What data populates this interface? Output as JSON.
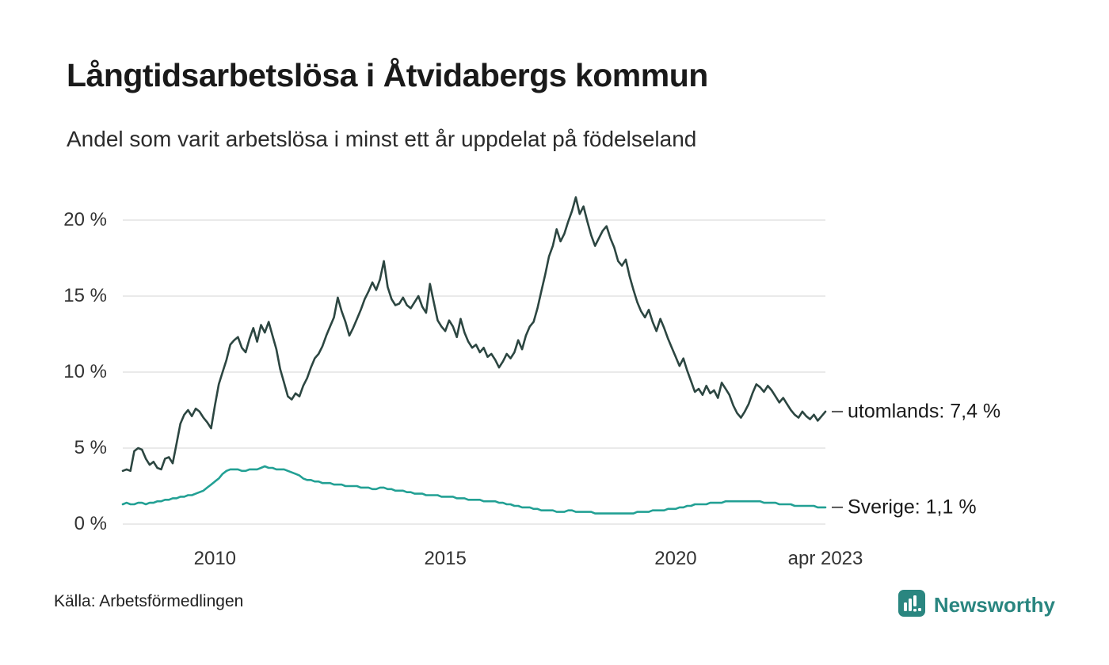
{
  "header": {
    "title": "Långtidsarbetslösa i Åtvidabergs kommun",
    "subtitle": "Andel som varit arbetslösa i minst ett år uppdelat på födelseland"
  },
  "chart_data": {
    "type": "line",
    "title": "Långtidsarbetslösa i Åtvidabergs kommun",
    "subtitle": "Andel som varit arbetslösa i minst ett år uppdelat på födelseland",
    "x_start": "2008-01",
    "x_end": "2023-04",
    "x_frequency": "monthly",
    "ylim": [
      0,
      22
    ],
    "grid": "horizontal",
    "gridline_color": "#e4e4e4",
    "y_ticks": [
      0,
      5,
      10,
      15,
      20
    ],
    "y_tick_labels": [
      "0 %",
      "5 %",
      "10 %",
      "15 %",
      "20 %"
    ],
    "x_ticks": [
      {
        "label": "2010",
        "month_index": 24
      },
      {
        "label": "2015",
        "month_index": 84
      },
      {
        "label": "2020",
        "month_index": 144
      },
      {
        "label": "apr 2023",
        "month_index": 183
      }
    ],
    "series": [
      {
        "name": "utomlands",
        "color": "#2c4641",
        "end_label": "utomlands: 7,4 %",
        "last_value": 7.4,
        "values": [
          3.5,
          3.6,
          3.5,
          4.8,
          5.0,
          4.9,
          4.3,
          3.9,
          4.1,
          3.7,
          3.6,
          4.3,
          4.4,
          4.0,
          5.3,
          6.6,
          7.2,
          7.5,
          7.1,
          7.6,
          7.4,
          7.0,
          6.7,
          6.3,
          7.8,
          9.2,
          10.0,
          10.8,
          11.8,
          12.1,
          12.3,
          11.6,
          11.3,
          12.2,
          12.9,
          12.0,
          13.1,
          12.6,
          13.3,
          12.4,
          11.5,
          10.2,
          9.3,
          8.4,
          8.2,
          8.6,
          8.4,
          9.1,
          9.6,
          10.3,
          10.9,
          11.2,
          11.7,
          12.4,
          13.0,
          13.6,
          14.9,
          14.0,
          13.3,
          12.4,
          12.9,
          13.5,
          14.1,
          14.8,
          15.3,
          15.9,
          15.4,
          16.1,
          17.3,
          15.6,
          14.8,
          14.4,
          14.5,
          14.9,
          14.4,
          14.2,
          14.6,
          15.0,
          14.3,
          13.9,
          15.8,
          14.6,
          13.4,
          13.0,
          12.7,
          13.4,
          13.0,
          12.3,
          13.5,
          12.6,
          12.0,
          11.6,
          11.8,
          11.3,
          11.6,
          11.0,
          11.2,
          10.8,
          10.3,
          10.7,
          11.2,
          10.9,
          11.3,
          12.1,
          11.5,
          12.4,
          13.0,
          13.3,
          14.2,
          15.3,
          16.4,
          17.6,
          18.3,
          19.4,
          18.6,
          19.1,
          19.9,
          20.6,
          21.5,
          20.4,
          20.9,
          19.9,
          19.0,
          18.3,
          18.8,
          19.3,
          19.6,
          18.8,
          18.2,
          17.3,
          17.0,
          17.4,
          16.3,
          15.4,
          14.6,
          14.0,
          13.6,
          14.1,
          13.3,
          12.7,
          13.5,
          12.9,
          12.2,
          11.6,
          11.0,
          10.4,
          10.9,
          10.1,
          9.4,
          8.7,
          8.9,
          8.5,
          9.1,
          8.6,
          8.8,
          8.3,
          9.3,
          8.9,
          8.5,
          7.8,
          7.3,
          7.0,
          7.4,
          7.9,
          8.6,
          9.2,
          9.0,
          8.7,
          9.1,
          8.8,
          8.4,
          8.0,
          8.3,
          7.9,
          7.5,
          7.2,
          7.0,
          7.4,
          7.1,
          6.9,
          7.2,
          6.8,
          7.1,
          7.4
        ]
      },
      {
        "name": "Sverige",
        "color": "#22a094",
        "end_label": "Sverige: 1,1 %",
        "last_value": 1.1,
        "values": [
          1.3,
          1.4,
          1.3,
          1.3,
          1.4,
          1.4,
          1.3,
          1.4,
          1.4,
          1.5,
          1.5,
          1.6,
          1.6,
          1.7,
          1.7,
          1.8,
          1.8,
          1.9,
          1.9,
          2.0,
          2.1,
          2.2,
          2.4,
          2.6,
          2.8,
          3.0,
          3.3,
          3.5,
          3.6,
          3.6,
          3.6,
          3.5,
          3.5,
          3.6,
          3.6,
          3.6,
          3.7,
          3.8,
          3.7,
          3.7,
          3.6,
          3.6,
          3.6,
          3.5,
          3.4,
          3.3,
          3.2,
          3.0,
          2.9,
          2.9,
          2.8,
          2.8,
          2.7,
          2.7,
          2.7,
          2.6,
          2.6,
          2.6,
          2.5,
          2.5,
          2.5,
          2.5,
          2.4,
          2.4,
          2.4,
          2.3,
          2.3,
          2.4,
          2.4,
          2.3,
          2.3,
          2.2,
          2.2,
          2.2,
          2.1,
          2.1,
          2.0,
          2.0,
          2.0,
          1.9,
          1.9,
          1.9,
          1.9,
          1.8,
          1.8,
          1.8,
          1.8,
          1.7,
          1.7,
          1.7,
          1.6,
          1.6,
          1.6,
          1.6,
          1.5,
          1.5,
          1.5,
          1.5,
          1.4,
          1.4,
          1.3,
          1.3,
          1.2,
          1.2,
          1.1,
          1.1,
          1.1,
          1.0,
          1.0,
          0.9,
          0.9,
          0.9,
          0.9,
          0.8,
          0.8,
          0.8,
          0.9,
          0.9,
          0.8,
          0.8,
          0.8,
          0.8,
          0.8,
          0.7,
          0.7,
          0.7,
          0.7,
          0.7,
          0.7,
          0.7,
          0.7,
          0.7,
          0.7,
          0.7,
          0.8,
          0.8,
          0.8,
          0.8,
          0.9,
          0.9,
          0.9,
          0.9,
          1.0,
          1.0,
          1.0,
          1.1,
          1.1,
          1.2,
          1.2,
          1.3,
          1.3,
          1.3,
          1.3,
          1.4,
          1.4,
          1.4,
          1.4,
          1.5,
          1.5,
          1.5,
          1.5,
          1.5,
          1.5,
          1.5,
          1.5,
          1.5,
          1.5,
          1.4,
          1.4,
          1.4,
          1.4,
          1.3,
          1.3,
          1.3,
          1.3,
          1.2,
          1.2,
          1.2,
          1.2,
          1.2,
          1.2,
          1.1,
          1.1,
          1.1
        ]
      }
    ]
  },
  "footer": {
    "source": "Källa: Arbetsförmedlingen",
    "brand": "Newsworthy",
    "brand_color": "#2a8680"
  }
}
